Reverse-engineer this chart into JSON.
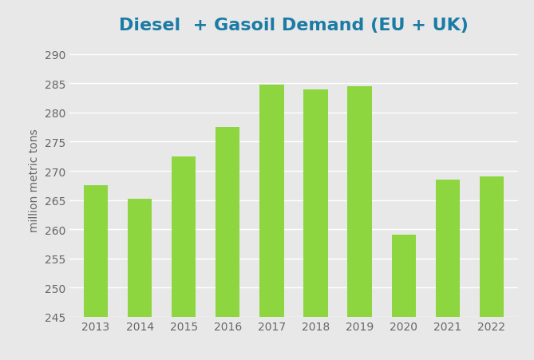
{
  "title": "Diesel  + Gasoil Demand (EU + UK)",
  "years": [
    2013,
    2014,
    2015,
    2016,
    2017,
    2018,
    2019,
    2020,
    2021,
    2022
  ],
  "values": [
    267.5,
    265.2,
    272.5,
    277.5,
    284.8,
    284.0,
    284.5,
    259.0,
    268.5,
    269.0
  ],
  "bar_color": "#8DD63F",
  "title_color": "#1B7BA5",
  "ylabel": "million metric tons",
  "ylabel_color": "#666666",
  "ylim": [
    245,
    292
  ],
  "yticks": [
    245,
    250,
    255,
    260,
    265,
    270,
    275,
    280,
    285,
    290
  ],
  "background_color": "#E8E8E8",
  "grid_color": "#FFFFFF",
  "tick_color": "#666666",
  "title_fontsize": 16,
  "ylabel_fontsize": 10,
  "tick_fontsize": 10,
  "bar_bottom": 245
}
